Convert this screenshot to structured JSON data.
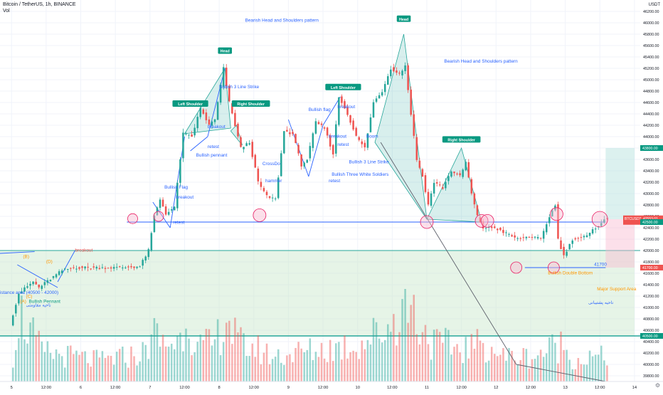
{
  "header": {
    "title": "Bitcoin / TetherUS, 1h, BINANCE",
    "vol_label": "Vol"
  },
  "colors": {
    "up": "#26a69a",
    "down": "#ef5350",
    "annotation_blue": "#2962ff",
    "annotation_green": "#089981",
    "annotation_orange": "#ff9800",
    "support_zone": "#c8e6c9",
    "target_zone": "#b2dfdb",
    "stop_zone": "#f8bbd0"
  },
  "price_axis": {
    "currency_label": "USDT",
    "ticks": [
      "46200.00",
      "46000.00",
      "45800.00",
      "45600.00",
      "45400.00",
      "45200.00",
      "45000.00",
      "44800.00",
      "44600.00",
      "44400.00",
      "44200.00",
      "44000.00",
      "43800.00",
      "43600.00",
      "43400.00",
      "43200.00",
      "43000.00",
      "42800.00",
      "42600.00",
      "42400.00",
      "42200.00",
      "42000.00",
      "41800.00",
      "41600.00",
      "41400.00",
      "41200.00",
      "41000.00",
      "40800.00",
      "40600.00",
      "40400.00",
      "40200.00",
      "40000.00",
      "39800.00"
    ],
    "badges": [
      {
        "label": "43800.00",
        "value": 43800,
        "color": "#089981"
      },
      {
        "label": "BTCUSDT",
        "value": 42553,
        "color": "#ef5350",
        "price": "42553.01",
        "countdown": "36:22"
      },
      {
        "label": "42500.00",
        "value": 42500,
        "color": "#089981"
      },
      {
        "label": "41700.00",
        "value": 41700,
        "color": "#ef5350"
      },
      {
        "label": "40500.00",
        "value": 40500,
        "color": "#089981"
      }
    ]
  },
  "time_axis": {
    "ticks": [
      {
        "label": "5",
        "value": 0
      },
      {
        "label": "12:00",
        "value": 12
      },
      {
        "label": "6",
        "value": 24
      },
      {
        "label": "12:00",
        "value": 36
      },
      {
        "label": "7",
        "value": 48
      },
      {
        "label": "12:00",
        "value": 60
      },
      {
        "label": "8",
        "value": 72
      },
      {
        "label": "12:00",
        "value": 84
      },
      {
        "label": "9",
        "value": 96
      },
      {
        "label": "12:00",
        "value": 108
      },
      {
        "label": "10",
        "value": 120
      },
      {
        "label": "12:00",
        "value": 132
      },
      {
        "label": "11",
        "value": 144
      },
      {
        "label": "12:00",
        "value": 156
      },
      {
        "label": "12",
        "value": 168
      },
      {
        "label": "12:00",
        "value": 180
      },
      {
        "label": "13",
        "value": 192
      },
      {
        "label": "12:00",
        "value": 204
      },
      {
        "label": "14",
        "value": 216
      }
    ]
  },
  "chart_data": {
    "type": "candlestick",
    "title": "Bitcoin / TetherUS, 1h, BINANCE",
    "ylim": [
      39700,
      46400
    ],
    "grid": true,
    "x_unit": "hours since 5th 00:00",
    "price_anchors": [
      {
        "t": 0,
        "p": 40700
      },
      {
        "t": 3,
        "p": 41250
      },
      {
        "t": 8,
        "p": 41450
      },
      {
        "t": 10,
        "p": 41350
      },
      {
        "t": 14,
        "p": 41500
      },
      {
        "t": 18,
        "p": 41650
      },
      {
        "t": 22,
        "p": 41700
      },
      {
        "t": 30,
        "p": 41700
      },
      {
        "t": 38,
        "p": 41700
      },
      {
        "t": 45,
        "p": 41720
      },
      {
        "t": 48,
        "p": 42000
      },
      {
        "t": 50,
        "p": 42600
      },
      {
        "t": 52,
        "p": 42900
      },
      {
        "t": 54,
        "p": 42650
      },
      {
        "t": 57,
        "p": 42750
      },
      {
        "t": 60,
        "p": 44050
      },
      {
        "t": 63,
        "p": 44000
      },
      {
        "t": 66,
        "p": 44500
      },
      {
        "t": 69,
        "p": 44200
      },
      {
        "t": 71,
        "p": 44300
      },
      {
        "t": 74,
        "p": 45200
      },
      {
        "t": 76,
        "p": 44600
      },
      {
        "t": 78,
        "p": 44200
      },
      {
        "t": 80,
        "p": 43800
      },
      {
        "t": 83,
        "p": 43900
      },
      {
        "t": 86,
        "p": 43200
      },
      {
        "t": 89,
        "p": 42950
      },
      {
        "t": 92,
        "p": 42900
      },
      {
        "t": 95,
        "p": 44100
      },
      {
        "t": 98,
        "p": 44050
      },
      {
        "t": 101,
        "p": 43500
      },
      {
        "t": 103,
        "p": 43600
      },
      {
        "t": 106,
        "p": 44250
      },
      {
        "t": 109,
        "p": 44150
      },
      {
        "t": 112,
        "p": 43700
      },
      {
        "t": 114,
        "p": 44700
      },
      {
        "t": 117,
        "p": 44400
      },
      {
        "t": 120,
        "p": 44000
      },
      {
        "t": 123,
        "p": 43800
      },
      {
        "t": 126,
        "p": 44600
      },
      {
        "t": 129,
        "p": 44800
      },
      {
        "t": 132,
        "p": 45200
      },
      {
        "t": 135,
        "p": 45100
      },
      {
        "t": 137,
        "p": 45250
      },
      {
        "t": 139,
        "p": 44400
      },
      {
        "t": 141,
        "p": 43600
      },
      {
        "t": 143,
        "p": 43300
      },
      {
        "t": 145,
        "p": 42800
      },
      {
        "t": 147,
        "p": 43200
      },
      {
        "t": 150,
        "p": 43100
      },
      {
        "t": 153,
        "p": 43400
      },
      {
        "t": 156,
        "p": 43300
      },
      {
        "t": 158,
        "p": 43550
      },
      {
        "t": 160,
        "p": 43000
      },
      {
        "t": 162,
        "p": 42600
      },
      {
        "t": 164,
        "p": 42400
      },
      {
        "t": 168,
        "p": 42400
      },
      {
        "t": 172,
        "p": 42300
      },
      {
        "t": 176,
        "p": 42200
      },
      {
        "t": 180,
        "p": 42250
      },
      {
        "t": 184,
        "p": 42200
      },
      {
        "t": 187,
        "p": 42600
      },
      {
        "t": 189,
        "p": 42800
      },
      {
        "t": 190,
        "p": 42200
      },
      {
        "t": 192,
        "p": 41900
      },
      {
        "t": 195,
        "p": 42200
      },
      {
        "t": 200,
        "p": 42250
      },
      {
        "t": 203,
        "p": 42400
      },
      {
        "t": 206,
        "p": 42550
      }
    ],
    "volume_profile": [
      {
        "t": 0,
        "v": 0.3
      },
      {
        "t": 2,
        "v": 0.85
      },
      {
        "t": 10,
        "v": 0.35
      },
      {
        "t": 20,
        "v": 0.3
      },
      {
        "t": 30,
        "v": 0.25
      },
      {
        "t": 40,
        "v": 0.3
      },
      {
        "t": 46,
        "v": 0.35
      },
      {
        "t": 48,
        "v": 0.6
      },
      {
        "t": 52,
        "v": 0.45
      },
      {
        "t": 58,
        "v": 0.5
      },
      {
        "t": 60,
        "v": 0.85
      },
      {
        "t": 64,
        "v": 0.4
      },
      {
        "t": 70,
        "v": 0.45
      },
      {
        "t": 74,
        "v": 0.8
      },
      {
        "t": 78,
        "v": 0.45
      },
      {
        "t": 84,
        "v": 0.4
      },
      {
        "t": 90,
        "v": 0.3
      },
      {
        "t": 100,
        "v": 0.35
      },
      {
        "t": 110,
        "v": 0.4
      },
      {
        "t": 120,
        "v": 0.45
      },
      {
        "t": 130,
        "v": 0.65
      },
      {
        "t": 137,
        "v": 1.0
      },
      {
        "t": 140,
        "v": 0.75
      },
      {
        "t": 146,
        "v": 0.45
      },
      {
        "t": 156,
        "v": 0.4
      },
      {
        "t": 164,
        "v": 0.45
      },
      {
        "t": 170,
        "v": 0.3
      },
      {
        "t": 180,
        "v": 0.3
      },
      {
        "t": 190,
        "v": 0.45
      },
      {
        "t": 195,
        "v": 0.25
      },
      {
        "t": 206,
        "v": 0.3
      }
    ],
    "levels": [
      {
        "value": 42500,
        "color": "#2962ff",
        "from": 40,
        "to": 206
      },
      {
        "value": 41700,
        "color": "#2962ff",
        "from": 178,
        "to": 206
      }
    ],
    "zones": [
      {
        "name": "support",
        "from_t": -4,
        "to_t": 216,
        "top": 42000,
        "bottom": 40500,
        "color": "#c8e6c9"
      },
      {
        "name": "target",
        "from_t": 206,
        "to_t": 216,
        "top": 43800,
        "bottom": 42550,
        "color": "#b2dfdb"
      },
      {
        "name": "stop",
        "from_t": 206,
        "to_t": 216,
        "top": 42550,
        "bottom": 41700,
        "color": "#f8bbd0"
      }
    ],
    "annotations": [
      {
        "text": "Bearish Head and Shoulders pattern",
        "t": 81,
        "p": 46020,
        "color": "#2962ff"
      },
      {
        "text": "Bearish Head and Shoulders pattern",
        "t": 150,
        "p": 45300,
        "color": "#2962ff"
      },
      {
        "text": "Bullish 3 Line Strike",
        "t": 72,
        "p": 44850,
        "color": "#2962ff"
      },
      {
        "text": "Bullish flag",
        "t": 103,
        "p": 44450,
        "color": "#2962ff"
      },
      {
        "text": "breakout",
        "t": 113,
        "p": 44500,
        "color": "#2962ff"
      },
      {
        "text": "breakout",
        "t": 68,
        "p": 44150,
        "color": "#2962ff"
      },
      {
        "text": "retest",
        "t": 68,
        "p": 43800,
        "color": "#2962ff"
      },
      {
        "text": "Bullish pennant",
        "t": 64,
        "p": 43650,
        "color": "#2962ff"
      },
      {
        "text": "CrossDo",
        "t": 87,
        "p": 43500,
        "color": "#2962ff"
      },
      {
        "text": "breakout",
        "t": 110,
        "p": 43980,
        "color": "#2962ff"
      },
      {
        "text": "retest",
        "t": 113,
        "p": 43840,
        "color": "#2962ff"
      },
      {
        "text": "Boom",
        "t": 123,
        "p": 43980,
        "color": "#2962ff"
      },
      {
        "text": "Bullish 3 Line Strike",
        "t": 117,
        "p": 43530,
        "color": "#2962ff"
      },
      {
        "text": "Bullish Three White Soldiers",
        "t": 111,
        "p": 43310,
        "color": "#2962ff"
      },
      {
        "text": "retest",
        "t": 110,
        "p": 43200,
        "color": "#2962ff"
      },
      {
        "text": "hammer",
        "t": 88,
        "p": 43200,
        "color": "#2962ff"
      },
      {
        "text": "Bullish Flag",
        "t": 53,
        "p": 43090,
        "color": "#2962ff"
      },
      {
        "text": "breakout",
        "t": 57,
        "p": 42910,
        "color": "#2962ff"
      },
      {
        "text": "retest",
        "t": 56,
        "p": 42470,
        "color": "#2962ff"
      },
      {
        "text": "breakout",
        "t": 22,
        "p": 41980,
        "color": "#ef5350"
      },
      {
        "text": "41700",
        "t": 202,
        "p": 41730,
        "color": "#2962ff"
      },
      {
        "text": "Bullish Double Bottom",
        "t": 186,
        "p": 41580,
        "color": "#ff9800"
      },
      {
        "text": "Major Support Area",
        "t": 203,
        "p": 41300,
        "color": "#ff9800"
      },
      {
        "text": "istance area (40500 - 42000)",
        "t": -4,
        "p": 41240,
        "color": "#2962ff"
      },
      {
        "text": "Bullish Pennant",
        "t": 6,
        "p": 41080,
        "color": "#089981"
      },
      {
        "text": "(B)",
        "t": 4,
        "p": 41870,
        "color": "#ff9800"
      },
      {
        "text": "(D)",
        "t": 12,
        "p": 41780,
        "color": "#ff9800"
      },
      {
        "text": "(C)",
        "t": 5,
        "p": 41170,
        "color": "#ff9800"
      },
      {
        "text": "(A)",
        "t": 3,
        "p": 41080,
        "color": "#ff9800"
      }
    ],
    "rtl_annotations": [
      {
        "text": "ناحیه مقاومتی",
        "t": 5,
        "p": 41020,
        "color": "#2962ff"
      },
      {
        "text": "ناحیه پشتیبانی",
        "t": 200,
        "p": 41060,
        "color": "#2962ff"
      }
    ],
    "tags": [
      {
        "text": "Head",
        "t": 74,
        "p": 45480
      },
      {
        "text": "Left Shoulder",
        "t": 62,
        "p": 44550
      },
      {
        "text": "Right Shoulder",
        "t": 83,
        "p": 44550
      },
      {
        "text": "Left Shoulder",
        "t": 115,
        "p": 44840
      },
      {
        "text": "Head",
        "t": 136,
        "p": 46040
      },
      {
        "text": "Right Shoulder",
        "t": 156,
        "p": 43920
      }
    ],
    "markers": [
      {
        "t": 42,
        "p": 42560,
        "r": 7
      },
      {
        "t": 51,
        "p": 42600,
        "r": 7
      },
      {
        "t": 86,
        "p": 42620,
        "r": 9
      },
      {
        "t": 144,
        "p": 42500,
        "r": 9
      },
      {
        "t": 163,
        "p": 42520,
        "r": 9
      },
      {
        "t": 165,
        "p": 42520,
        "r": 9
      },
      {
        "t": 189,
        "p": 42640,
        "r": 9
      },
      {
        "t": 204,
        "p": 42550,
        "r": 11
      },
      {
        "t": 175,
        "p": 41700,
        "r": 8
      },
      {
        "t": 188,
        "p": 41700,
        "r": 8
      }
    ],
    "pattern_triangles": [
      {
        "points": [
          [
            60,
            44050
          ],
          [
            74,
            45200
          ],
          [
            76,
            44150
          ]
        ],
        "color": "#26a69a"
      },
      {
        "points": [
          [
            76,
            44100
          ],
          [
            78,
            44200
          ],
          [
            80,
            43850
          ]
        ],
        "color": "#26a69a"
      },
      {
        "points": [
          [
            126,
            43900
          ],
          [
            136,
            45800
          ],
          [
            144,
            42550
          ]
        ],
        "color": "#26a69a"
      },
      {
        "points": [
          [
            144,
            42550
          ],
          [
            156,
            43800
          ],
          [
            163,
            42500
          ]
        ],
        "color": "#26a69a"
      }
    ],
    "trend_lines": [
      {
        "from": [
          -4,
          41950
        ],
        "to": [
          8,
          41980
        ],
        "color": "#2962ff"
      },
      {
        "from": [
          2,
          41750
        ],
        "to": [
          16,
          41350
        ],
        "color": "#2962ff"
      },
      {
        "from": [
          16,
          41450
        ],
        "to": [
          22,
          42000
        ],
        "color": "#2962ff"
      },
      {
        "from": [
          49,
          42850
        ],
        "to": [
          55,
          42400
        ],
        "color": "#2962ff"
      },
      {
        "from": [
          55,
          42400
        ],
        "to": [
          60,
          44000
        ],
        "color": "#2962ff"
      },
      {
        "from": [
          62,
          43750
        ],
        "to": [
          68,
          44000
        ],
        "color": "#2962ff"
      },
      {
        "from": [
          68,
          44000
        ],
        "to": [
          74,
          45200
        ],
        "color": "#2962ff"
      },
      {
        "from": [
          96,
          44300
        ],
        "to": [
          103,
          43300
        ],
        "color": "#2962ff"
      },
      {
        "from": [
          103,
          43300
        ],
        "to": [
          108,
          44200
        ],
        "color": "#2962ff"
      },
      {
        "from": [
          108,
          44200
        ],
        "to": [
          114,
          44700
        ],
        "color": "#2962ff"
      },
      {
        "from": [
          128,
          43900
        ],
        "to": [
          175,
          40000
        ],
        "color": "#5d606b"
      },
      {
        "from": [
          175,
          40000
        ],
        "to": [
          206,
          39700
        ],
        "color": "#5d606b"
      }
    ]
  }
}
